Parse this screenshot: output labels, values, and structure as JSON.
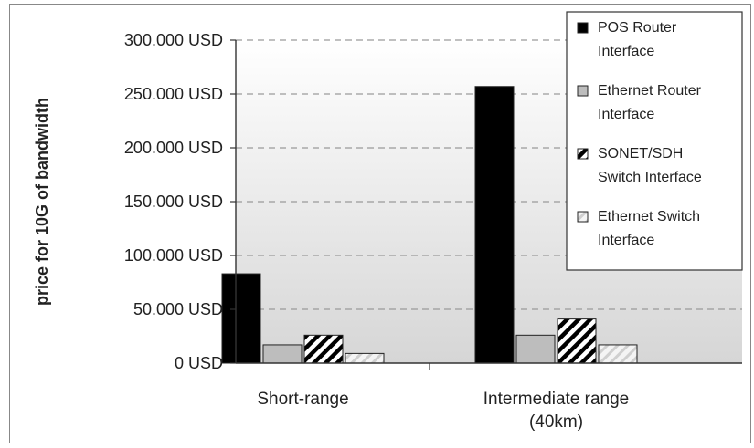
{
  "chart_data": {
    "type": "bar",
    "title": "",
    "xlabel": "",
    "ylabel": "price for 10G of bandwidth",
    "ylim": [
      0,
      300000
    ],
    "yticks": [
      "0 USD",
      "50.000 USD",
      "100.000 USD",
      "150.000 USD",
      "200.000 USD",
      "250.000 USD",
      "300.000 USD"
    ],
    "categories": [
      [
        "Short-range"
      ],
      [
        "Intermediate range",
        "(40km)"
      ]
    ],
    "legend_position": "top-right",
    "grid": true,
    "series": [
      {
        "name": [
          "POS Router",
          "Interface"
        ],
        "values": [
          83000,
          257000
        ],
        "color": "#000000",
        "pattern": "solid"
      },
      {
        "name": [
          "Ethernet Router",
          "Interface"
        ],
        "values": [
          17000,
          26000
        ],
        "color": "#bdbdbd",
        "pattern": "solid"
      },
      {
        "name": [
          "SONET/SDH",
          "Switch Interface"
        ],
        "values": [
          26000,
          41000
        ],
        "color": "#000000",
        "pattern": "diagonal-stripes"
      },
      {
        "name": [
          "Ethernet Switch",
          "Interface"
        ],
        "values": [
          9000,
          17000
        ],
        "color": "#d9d9d9",
        "pattern": "light-diagonal"
      }
    ]
  }
}
